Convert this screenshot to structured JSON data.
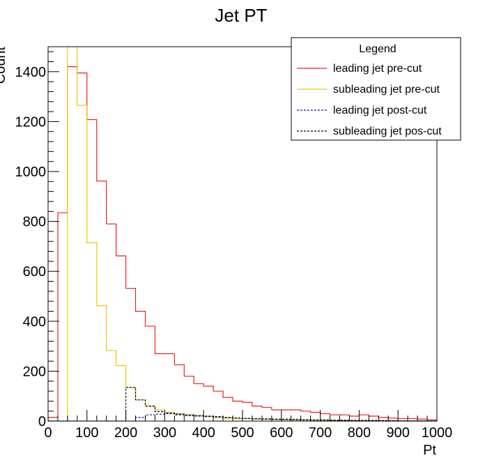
{
  "chart_data": {
    "type": "line",
    "title": "Jet PT",
    "xlabel": "Pt",
    "ylabel": "Count",
    "xlim": [
      0,
      1000
    ],
    "ylim": [
      0,
      1500
    ],
    "grid": false,
    "legend_placement": "top-right",
    "legend_title": "Legend",
    "x_ticks": [
      0,
      100,
      200,
      300,
      400,
      500,
      600,
      700,
      800,
      900,
      1000
    ],
    "y_ticks": [
      0,
      200,
      400,
      600,
      800,
      1000,
      1200,
      1400
    ],
    "bin_edges": [
      0,
      25,
      50,
      75,
      100,
      125,
      150,
      175,
      200,
      225,
      250,
      275,
      300,
      325,
      350,
      375,
      400,
      425,
      450,
      475,
      500,
      525,
      550,
      575,
      600,
      625,
      650,
      675,
      700,
      725,
      750,
      775,
      800,
      825,
      850,
      875,
      900,
      925,
      950,
      975,
      1000
    ],
    "series": [
      {
        "name": "leading jet pre-cut",
        "color": "#e8231f",
        "style": "solid",
        "values": [
          15,
          835,
          1420,
          1395,
          1208,
          962,
          790,
          662,
          532,
          440,
          380,
          270,
          270,
          226,
          180,
          150,
          140,
          120,
          95,
          80,
          75,
          60,
          55,
          45,
          45,
          45,
          40,
          35,
          30,
          25,
          25,
          20,
          25,
          20,
          15,
          12,
          10,
          10,
          8,
          5
        ]
      },
      {
        "name": "subleading jet pre-cut",
        "color": "#f2c600",
        "style": "solid",
        "values": [
          0,
          0,
          1510,
          1265,
          715,
          462,
          283,
          222,
          135,
          85,
          60,
          45,
          35,
          30,
          25,
          22,
          18,
          15,
          12,
          10,
          10,
          8,
          7,
          6,
          5,
          5,
          4,
          4,
          3,
          3,
          3,
          2,
          2,
          2,
          2,
          1,
          1,
          1,
          1,
          1
        ]
      },
      {
        "name": "leading jet post-cut",
        "color": "#1a1aa8",
        "style": "dashed",
        "values": [
          0,
          0,
          0,
          0,
          0,
          0,
          0,
          0,
          0,
          15,
          25,
          28,
          30,
          25,
          22,
          20,
          18,
          16,
          14,
          12,
          11,
          10,
          9,
          8,
          8,
          7,
          6,
          5,
          5,
          4,
          4,
          3,
          3,
          3,
          2,
          2,
          1,
          1,
          1,
          1
        ]
      },
      {
        "name": "subleading jet pos-cut",
        "color": "#000000",
        "style": "dashed",
        "values": [
          0,
          0,
          0,
          0,
          0,
          0,
          0,
          0,
          135,
          85,
          60,
          38,
          32,
          28,
          25,
          22,
          20,
          18,
          15,
          12,
          10,
          9,
          8,
          7,
          6,
          5,
          5,
          4,
          4,
          3,
          3,
          3,
          2,
          2,
          2,
          1,
          1,
          1,
          1,
          0
        ]
      }
    ]
  }
}
